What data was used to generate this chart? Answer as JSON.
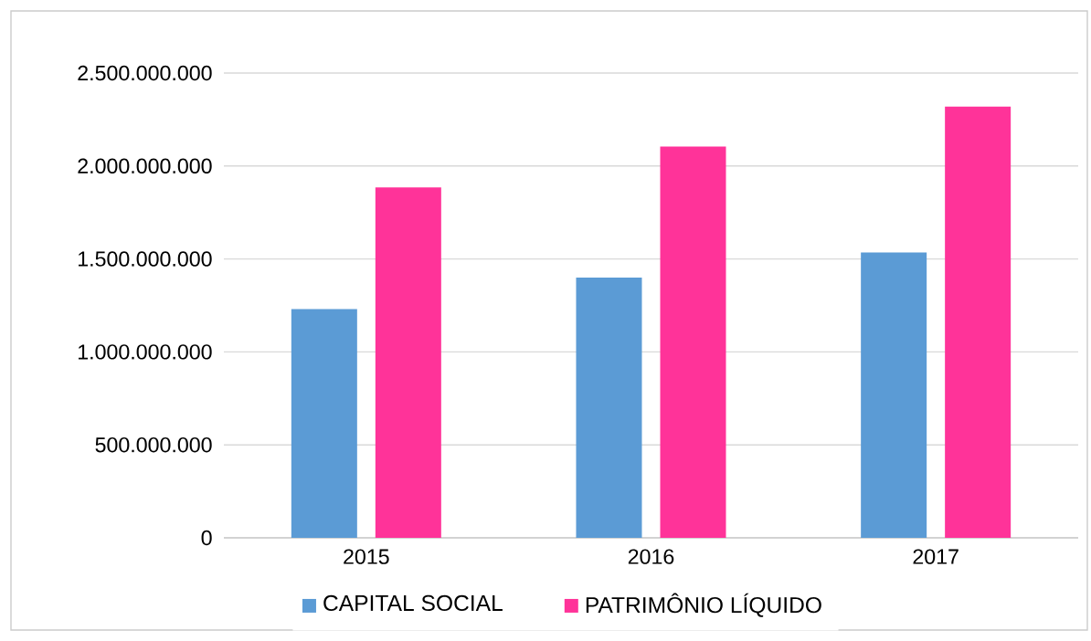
{
  "chart_data": {
    "type": "bar",
    "categories": [
      "2015",
      "2016",
      "2017"
    ],
    "series": [
      {
        "name": "CAPITAL SOCIAL",
        "color": "#5b9bd5",
        "values": [
          1230000000,
          1400000000,
          1535000000
        ]
      },
      {
        "name": "PATRIMÔNIO LÍQUIDO",
        "color": "#ff3399",
        "values": [
          1885000000,
          2105000000,
          2320000000
        ]
      }
    ],
    "ylim": [
      0,
      2500000000
    ],
    "yticks": [
      {
        "value": 0,
        "label": "0"
      },
      {
        "value": 500000000,
        "label": "500.000.000"
      },
      {
        "value": 1000000000,
        "label": "1.000.000.000"
      },
      {
        "value": 1500000000,
        "label": "1.500.000.000"
      },
      {
        "value": 2000000000,
        "label": "2.000.000.000"
      },
      {
        "value": 2500000000,
        "label": "2.500.000.000"
      }
    ],
    "grid": "y",
    "legend": "bottom"
  }
}
